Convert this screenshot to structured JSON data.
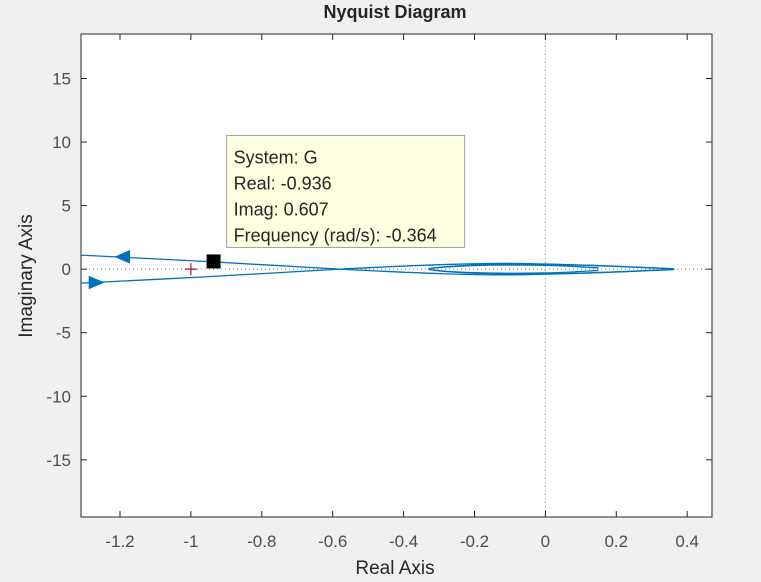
{
  "chart_data": {
    "type": "line",
    "title": "Nyquist Diagram",
    "xlabel": "Real Axis",
    "ylabel": "Imaginary Axis",
    "xlim": [
      -1.31,
      0.47
    ],
    "ylim": [
      -19.5,
      18.5
    ],
    "xticks": [
      -1.2,
      -1,
      -0.8,
      -0.6,
      -0.4,
      -0.2,
      0,
      0.2,
      0.4
    ],
    "xtick_labels": [
      "-1.2",
      "-1",
      "-0.8",
      "-0.6",
      "-0.4",
      "-0.2",
      "0",
      "0.2",
      "0.4"
    ],
    "yticks": [
      15,
      10,
      5,
      0,
      -5,
      -10,
      -15
    ],
    "ytick_labels": [
      "15",
      "10",
      "5",
      "0",
      "-5",
      "-10",
      "-15"
    ],
    "grid": false,
    "colors": {
      "curve": "#0072bd",
      "critical_point": "#a2142f",
      "axes_background": "#ffffff",
      "figure_background": "#f0f0f0",
      "datatip_background": "#ffffe1"
    },
    "series": [
      {
        "branch": "positive-frequency",
        "x": [
          -1.31,
          -0.95,
          -0.58,
          -0.3,
          -0.1,
          0.12,
          0.28,
          0.36,
          0.2,
          0.0,
          -0.2,
          -0.33,
          -0.2,
          0.0,
          0.15
        ],
        "y": [
          1.1,
          0.59,
          0.0,
          -0.35,
          -0.45,
          -0.3,
          -0.12,
          0.0,
          0.22,
          0.38,
          0.32,
          0.0,
          -0.28,
          -0.3,
          -0.1
        ]
      },
      {
        "branch": "negative-frequency",
        "x": [
          -1.31,
          -0.95,
          -0.58,
          -0.3,
          -0.1,
          0.12,
          0.28,
          0.36,
          0.2,
          0.0,
          -0.2,
          -0.33,
          -0.2,
          0.0,
          0.15
        ],
        "y": [
          -1.1,
          -0.59,
          0.0,
          0.35,
          0.45,
          0.3,
          0.12,
          0.0,
          -0.22,
          -0.38,
          -0.32,
          0.0,
          0.28,
          0.3,
          0.1
        ]
      }
    ],
    "critical_point": {
      "x": -1,
      "y": 0,
      "marker": "+"
    },
    "arrows": [
      {
        "x": -1.19,
        "y": 0.97,
        "direction": "left"
      },
      {
        "x": -1.27,
        "y": -1.05,
        "direction": "right"
      }
    ],
    "datatip": {
      "x": -0.936,
      "y": 0.607,
      "lines": [
        "System: G",
        "Real: -0.936",
        "Imag: 0.607",
        "Frequency (rad/s): -0.364"
      ]
    }
  }
}
